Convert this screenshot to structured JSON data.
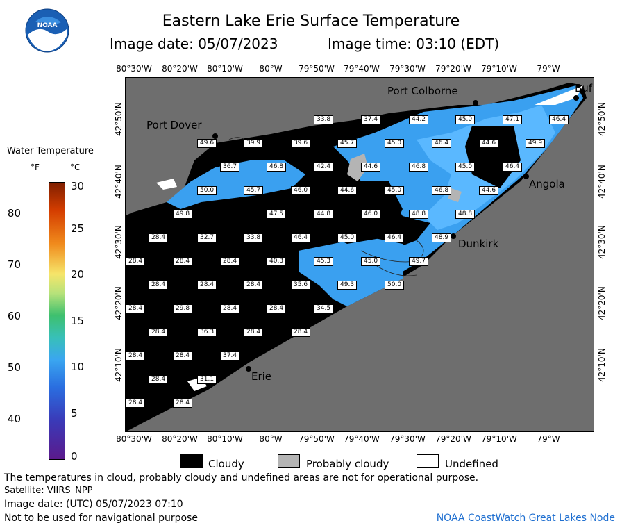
{
  "header": {
    "title": "Eastern Lake Erie Surface Temperature",
    "date_label": "Image date: 05/07/2023",
    "time_label": "Image time: 03:10 (EDT)",
    "logo_text": "NOAA"
  },
  "axes": {
    "lon_ticks": [
      "80°30'W",
      "80°20'W",
      "80°10'W",
      "80°W",
      "79°50'W",
      "79°40'W",
      "79°30'W",
      "79°20'W",
      "79°10'W",
      "79°W"
    ],
    "lat_ticks": [
      "42°50'N",
      "42°40'N",
      "42°30'N",
      "42°20'N",
      "42°10'N"
    ]
  },
  "legend": {
    "title": "Water Temperature",
    "unit_f": "°F",
    "unit_c": "°C",
    "f_ticks": [
      "80",
      "70",
      "60",
      "50",
      "40"
    ],
    "c_ticks": [
      "30",
      "25",
      "20",
      "15",
      "10",
      "5",
      "0"
    ]
  },
  "places": {
    "port_colborne": "Port Colborne",
    "buffalo": "Buf",
    "port_dover": "Port Dover",
    "angola": "Angola",
    "dunkirk": "Dunkirk",
    "erie": "Erie"
  },
  "temperatures": [
    "33.8",
    "37.4",
    "44.2",
    "45.0",
    "47.1",
    "46.4",
    "49.6",
    "39.9",
    "39.6",
    "45.7",
    "45.0",
    "46.4",
    "44.6",
    "49.9",
    "36.7",
    "46.8",
    "42.4",
    "44.6",
    "46.8",
    "45.0",
    "46.4",
    "50.0",
    "45.7",
    "46.0",
    "44.6",
    "45.0",
    "46.8",
    "44.6",
    "49.8",
    "47.5",
    "44.8",
    "46.0",
    "48.8",
    "48.8",
    "28.4",
    "32.7",
    "33.8",
    "46.4",
    "45.0",
    "46.4",
    "48.9",
    "28.4",
    "28.4",
    "28.4",
    "40.3",
    "45.3",
    "45.0",
    "49.7",
    "28.4",
    "28.4",
    "28.4",
    "35.6",
    "49.3",
    "50.0",
    "28.4",
    "29.8",
    "28.4",
    "28.4",
    "34.5",
    "28.4",
    "36.3",
    "28.4",
    "28.4",
    "28.4",
    "28.4",
    "37.4",
    "28.4",
    "31.1",
    "28.4",
    "28.4"
  ],
  "key": {
    "cloudy": "Cloudy",
    "probably_cloudy": "Probably cloudy",
    "undefined": "Undefined"
  },
  "footer": {
    "disclaimer": "The temperatures in cloud, probably cloudy and undefined areas are not for operational purpose.",
    "satellite": "Satellite: VIIRS_NPP",
    "utc_date": "Image date: (UTC) 05/07/2023  07:10",
    "nav_warning": "Not to be used for navigational purpose",
    "credit": "NOAA CoastWatch Great Lakes Node"
  },
  "colors": {
    "land": "#6e6e6e",
    "cloud": "#000000",
    "water_cool": "#3aa0f0",
    "water_mid": "#5ab8ff",
    "probably_cloudy": "#b4b4b4",
    "undefined": "#ffffff",
    "credit": "#1f6fd0"
  }
}
